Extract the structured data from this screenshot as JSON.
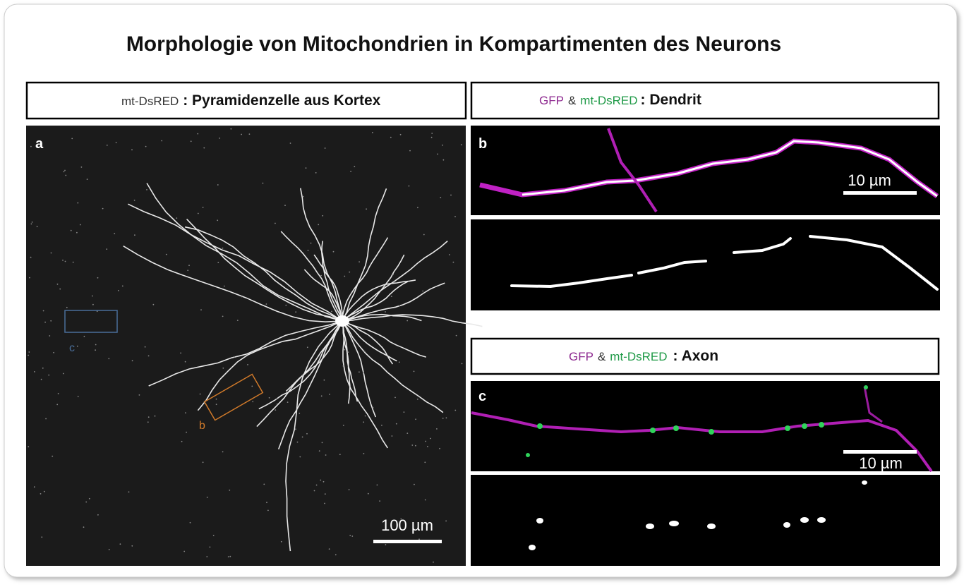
{
  "title": "Morphologie von Mitochondrien in Kompartimenten des Neurons",
  "left_panel": {
    "header": [
      "mt-DsRED",
      ": Pyramidenzelle aus Kortex"
    ],
    "label": "a",
    "inset_labels": [
      "c",
      "b"
    ],
    "scale_bar": "100 µm"
  },
  "dendrite_panel": {
    "header": [
      "GFP",
      "&",
      "mt-DsRED",
      ": Dendrit"
    ],
    "label": "b",
    "scale_bar": "10 µm"
  },
  "axon_panel": {
    "header": [
      "GFP",
      "&",
      "mt-DsRED",
      ": Axon"
    ],
    "label": "c",
    "scale_bar": "10 µm"
  }
}
